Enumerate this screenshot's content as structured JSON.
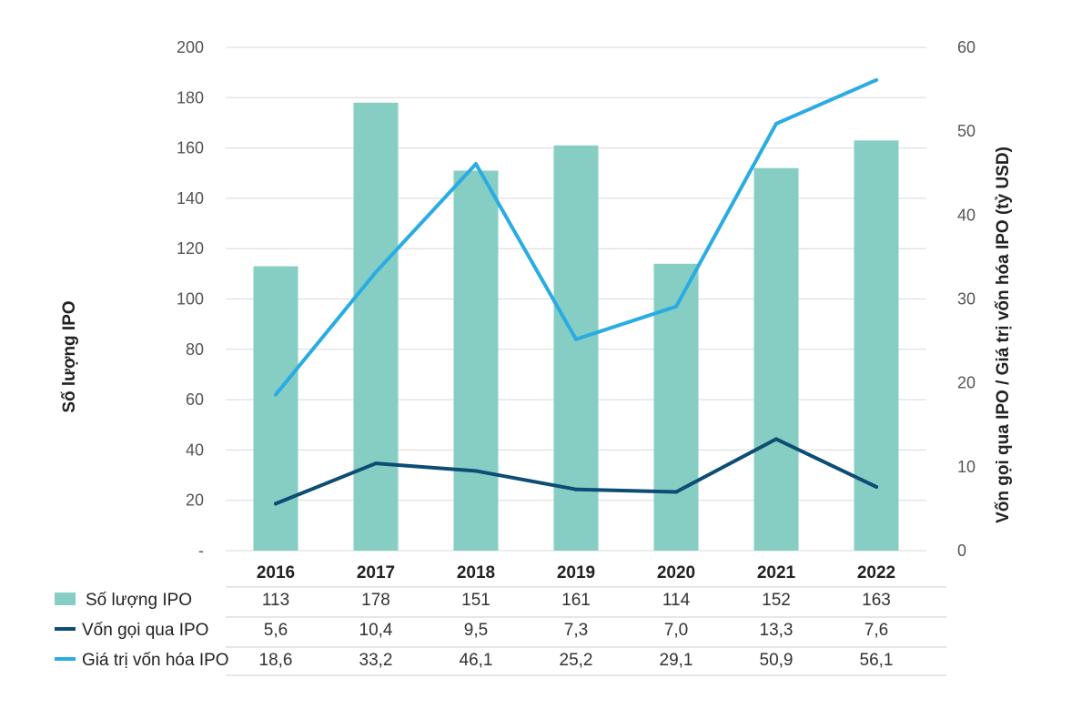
{
  "chart_data": {
    "type": "bar",
    "categories": [
      "2016",
      "2017",
      "2018",
      "2019",
      "2020",
      "2021",
      "2022"
    ],
    "left_axis": {
      "label": "Số lượng IPO",
      "ylim": [
        0,
        200
      ],
      "ticks": [
        "-",
        "20",
        "40",
        "60",
        "80",
        "100",
        "120",
        "140",
        "160",
        "180",
        "200"
      ]
    },
    "right_axis": {
      "label": "Vốn gọi qua IPO / Giá trị vốn hóa IPO (tỷ USD)",
      "ylim": [
        0,
        60
      ],
      "ticks": [
        "0",
        "10",
        "20",
        "30",
        "40",
        "50",
        "60"
      ]
    },
    "series": [
      {
        "name": "Số lượng IPO",
        "type": "bar",
        "axis": "left",
        "color": "#86CEC4",
        "values": [
          113,
          178,
          151,
          161,
          114,
          152,
          163
        ],
        "labels": [
          "113",
          "178",
          "151",
          "161",
          "114",
          "152",
          "163"
        ]
      },
      {
        "name": "Vốn gọi qua IPO",
        "type": "line",
        "axis": "right",
        "color": "#0D4D74",
        "values": [
          5.6,
          10.4,
          9.5,
          7.3,
          7.0,
          13.3,
          7.6
        ],
        "labels": [
          "5,6",
          "10,4",
          "9,5",
          "7,3",
          "7,0",
          "13,3",
          "7,6"
        ]
      },
      {
        "name": "Giá trị vốn hóa IPO",
        "type": "line",
        "axis": "right",
        "color": "#2AACE2",
        "values": [
          18.6,
          33.2,
          46.1,
          25.2,
          29.1,
          50.9,
          56.1
        ],
        "labels": [
          "18,6",
          "33,2",
          "46,1",
          "25,2",
          "29,1",
          "50,9",
          "56,1"
        ]
      }
    ],
    "gridlines": true,
    "legend": "table-below"
  }
}
